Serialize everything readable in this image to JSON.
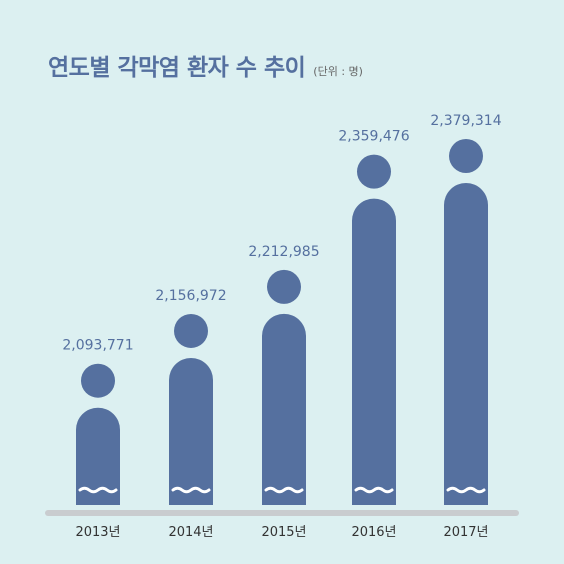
{
  "chart_data": {
    "type": "bar",
    "title": "연도별 각막염 환자 수 추이",
    "unit": "(단위 : 명)",
    "categories": [
      "2013년",
      "2014년",
      "2015년",
      "2016년",
      "2017년"
    ],
    "values": [
      2093771,
      2156972,
      2212985,
      2359476,
      2379314
    ],
    "value_labels": [
      "2,093,771",
      "2,156,972",
      "2,212,985",
      "2,359,476",
      "2,379,314"
    ],
    "axis_break": true,
    "colors": {
      "background": "#dcf0f1",
      "bar": "#55709f",
      "baseline": "#c9cccf",
      "text": "#333333",
      "title": "#55709f",
      "wave": "#ffffff"
    }
  }
}
